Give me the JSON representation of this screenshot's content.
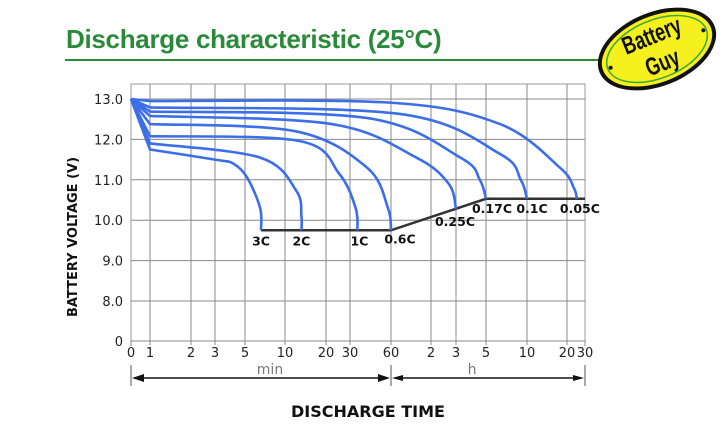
{
  "title": "Discharge characteristic (25°C)",
  "logo": {
    "text_line1": "Battery",
    "text_line2": "Guy",
    "fill": "#f5f01e",
    "ring": "#3aa83a"
  },
  "colors": {
    "title": "#2a8a3a",
    "curve": "#3b6ee8",
    "cutoff": "#333333",
    "grid": "#888888"
  },
  "chart_data": {
    "type": "line",
    "title": "Discharge characteristic (25°C)",
    "xlabel": "DISCHARGE TIME",
    "ylabel": "BATTERY VOLTAGE (V)",
    "x_scale": "log (minutes, then hours)",
    "x_unit_labels": {
      "minutes": "min",
      "hours": "h"
    },
    "x_ticks": [
      {
        "label": "0",
        "minutes": 0
      },
      {
        "label": "1",
        "minutes": 1
      },
      {
        "label": "2",
        "minutes": 2
      },
      {
        "label": "3",
        "minutes": 3
      },
      {
        "label": "5",
        "minutes": 5
      },
      {
        "label": "10",
        "minutes": 10
      },
      {
        "label": "20",
        "minutes": 20
      },
      {
        "label": "30",
        "minutes": 30
      },
      {
        "label": "60",
        "minutes": 60
      },
      {
        "label": "2",
        "minutes": 120
      },
      {
        "label": "3",
        "minutes": 180
      },
      {
        "label": "5",
        "minutes": 300
      },
      {
        "label": "10",
        "minutes": 600
      },
      {
        "label": "20",
        "minutes": 1200
      },
      {
        "label": "30",
        "minutes": 1800
      }
    ],
    "y_ticks": [
      "13.0",
      "12.0",
      "11.0",
      "10.0",
      "9.0",
      "8.0",
      "0"
    ],
    "y_tick_values": [
      13,
      12,
      11,
      10,
      9,
      8,
      0
    ],
    "y_axis_break": [
      0,
      8
    ],
    "grid": true,
    "series": [
      {
        "name": "3C",
        "points": [
          [
            0,
            13.0
          ],
          [
            1,
            11.75
          ],
          [
            3,
            11.5
          ],
          [
            4.1,
            11.4
          ],
          [
            5.2,
            11.05
          ],
          [
            6.5,
            10.3
          ],
          [
            6.6,
            9.75
          ]
        ]
      },
      {
        "name": "2C",
        "points": [
          [
            0,
            13.0
          ],
          [
            1,
            11.9
          ],
          [
            6.5,
            11.55
          ],
          [
            12.1,
            10.73
          ],
          [
            13.2,
            10.1
          ],
          [
            13.2,
            9.75
          ]
        ]
      },
      {
        "name": "1C",
        "points": [
          [
            0,
            13.0
          ],
          [
            1,
            12.08
          ],
          [
            12.8,
            11.96
          ],
          [
            25,
            11.15
          ],
          [
            33,
            10.3
          ],
          [
            34,
            9.75
          ]
        ]
      },
      {
        "name": "0.6C",
        "points": [
          [
            0,
            13.0
          ],
          [
            1,
            12.38
          ],
          [
            12,
            12.2
          ],
          [
            40,
            11.3
          ],
          [
            57,
            10.3
          ],
          [
            60,
            9.75
          ]
        ]
      },
      {
        "name": "0.25C",
        "points": [
          [
            0,
            13.0
          ],
          [
            1,
            12.58
          ],
          [
            22,
            12.38
          ],
          [
            93,
            11.55
          ],
          [
            160,
            10.9
          ],
          [
            180,
            10.28
          ]
        ]
      },
      {
        "name": "0.17C",
        "points": [
          [
            0,
            13.0
          ],
          [
            1,
            12.69
          ],
          [
            40,
            12.53
          ],
          [
            194,
            11.55
          ],
          [
            270,
            11.0
          ],
          [
            300,
            10.53
          ]
        ]
      },
      {
        "name": "0.1C",
        "points": [
          [
            0,
            13.0
          ],
          [
            1,
            12.79
          ],
          [
            70,
            12.63
          ],
          [
            380,
            11.64
          ],
          [
            540,
            11.0
          ],
          [
            600,
            10.53
          ]
        ]
      },
      {
        "name": "0.05C",
        "points": [
          [
            0,
            13.0
          ],
          [
            1,
            12.95
          ],
          [
            59,
            12.91
          ],
          [
            380,
            12.38
          ],
          [
            1062,
            11.3
          ],
          [
            1400,
            10.8
          ],
          [
            1500,
            10.53
          ]
        ]
      }
    ],
    "cutoff_line": [
      [
        6.6,
        9.75
      ],
      [
        60,
        9.75
      ],
      [
        300,
        10.53
      ],
      [
        1800,
        10.53
      ]
    ]
  }
}
